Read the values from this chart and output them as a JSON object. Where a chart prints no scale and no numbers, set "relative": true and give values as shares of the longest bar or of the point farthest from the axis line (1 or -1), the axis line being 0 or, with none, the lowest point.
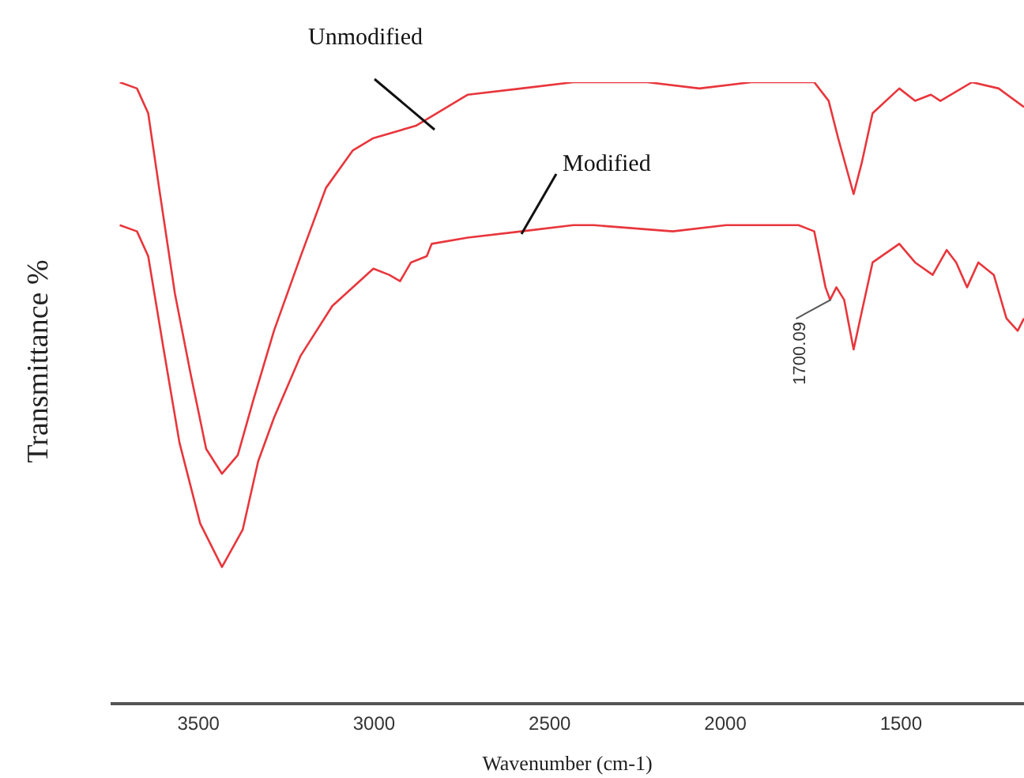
{
  "chart_data": {
    "type": "line",
    "xlabel": "Wavenumber (cm-1)",
    "ylabel": "Transmittance %",
    "relative": true,
    "xlim": [
      3750,
      1150
    ],
    "xticks": [
      3500,
      3000,
      2500,
      2000,
      1500
    ],
    "marker": "none",
    "line_style": "solid",
    "annotations": [
      {
        "text": "1700.09",
        "x": 1700,
        "y": 0.65
      }
    ],
    "series": [
      {
        "name": "Unmodified",
        "color": "#e8363c",
        "x": [
          3724,
          3675,
          3643,
          3612,
          3567,
          3522,
          3478,
          3433,
          3388,
          3343,
          3285,
          3209,
          3137,
          3061,
          3002,
          2881,
          2733,
          2581,
          2433,
          2357,
          2222,
          2074,
          1926,
          1792,
          1747,
          1706,
          1679,
          1635,
          1612,
          1581,
          1505,
          1460,
          1415,
          1388,
          1298,
          1222,
          1150
        ],
        "values": [
          1.0,
          0.99,
          0.95,
          0.83,
          0.66,
          0.53,
          0.41,
          0.37,
          0.4,
          0.49,
          0.6,
          0.72,
          0.83,
          0.89,
          0.91,
          0.93,
          0.98,
          0.99,
          1.0,
          1.0,
          1.0,
          0.99,
          1.0,
          1.0,
          1.0,
          0.97,
          0.91,
          0.82,
          0.87,
          0.95,
          0.99,
          0.97,
          0.98,
          0.97,
          1.0,
          0.99,
          0.96
        ]
      },
      {
        "name": "Modified",
        "color": "#e8363c",
        "x": [
          3724,
          3675,
          3643,
          3599,
          3554,
          3495,
          3433,
          3374,
          3330,
          3285,
          3209,
          3119,
          3002,
          2957,
          2926,
          2895,
          2850,
          2836,
          2733,
          2581,
          2433,
          2375,
          2150,
          1998,
          1792,
          1747,
          1715,
          1702,
          1684,
          1662,
          1635,
          1612,
          1581,
          1505,
          1460,
          1410,
          1370,
          1343,
          1312,
          1280,
          1236,
          1200,
          1168,
          1150
        ],
        "values": [
          0.77,
          0.76,
          0.72,
          0.57,
          0.42,
          0.29,
          0.22,
          0.28,
          0.39,
          0.46,
          0.56,
          0.64,
          0.7,
          0.69,
          0.68,
          0.71,
          0.72,
          0.74,
          0.75,
          0.76,
          0.77,
          0.77,
          0.76,
          0.77,
          0.77,
          0.76,
          0.67,
          0.65,
          0.67,
          0.65,
          0.57,
          0.63,
          0.71,
          0.74,
          0.71,
          0.69,
          0.73,
          0.71,
          0.67,
          0.71,
          0.69,
          0.62,
          0.6,
          0.62
        ]
      }
    ]
  }
}
